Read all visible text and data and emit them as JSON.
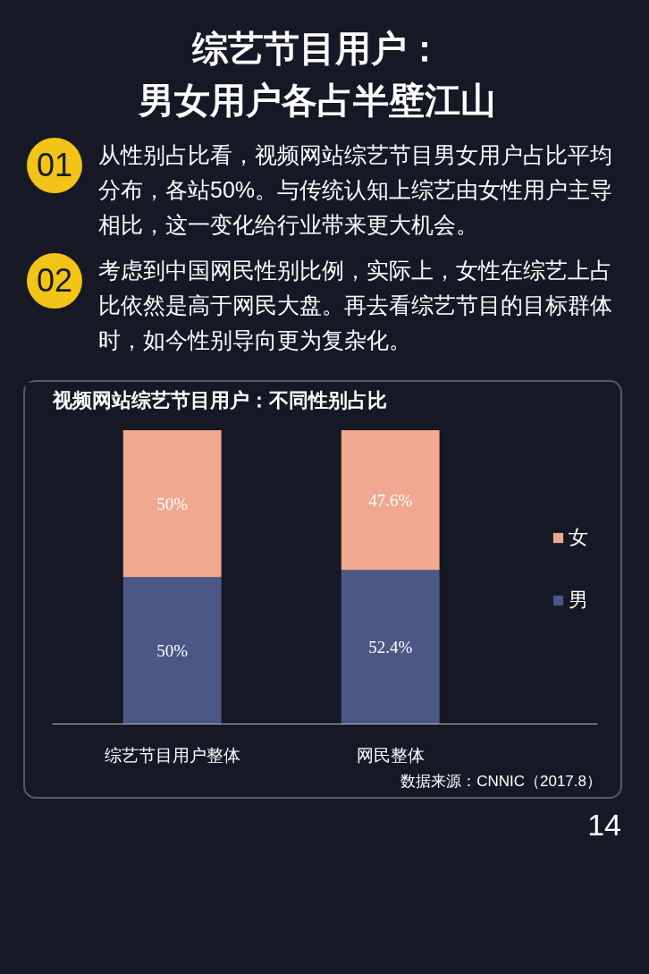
{
  "chart_data": {
    "type": "bar",
    "title": "综艺节目用户：男女用户各占半壁江山",
    "subtitle": "视频网站综艺节目用户：不同性别占比",
    "annotations": [
      "01",
      "从性别占比看，视频网站综艺节目男女用户占比平均分布，各站50%。与传统认知上综艺由女性用户主导相比，这一变化给行业带来更大机会。",
      "02",
      "考虑到中国网民性别比例，实际上，女性在综艺上占比依然是高于网民大盘。再去看综艺节目的目标群体时，如今性别导向更为复杂化。",
      "数据来源：CNNIC（2017.8）",
      "14"
    ],
    "categories": [
      "综艺节目用户整体",
      "网民整体"
    ],
    "stacked": true,
    "legend": "right",
    "grid": false,
    "tick_labels": "x",
    "series": [
      {
        "name": "男",
        "color": "#4b5886",
        "values": [
          50,
          52.4
        ],
        "value_labels": [
          "50%",
          "52.4%"
        ]
      },
      {
        "name": "女",
        "color": "#f0a990",
        "values": [
          50,
          47.6
        ],
        "value_labels": [
          "50%",
          "47.6%"
        ]
      }
    ]
  }
}
